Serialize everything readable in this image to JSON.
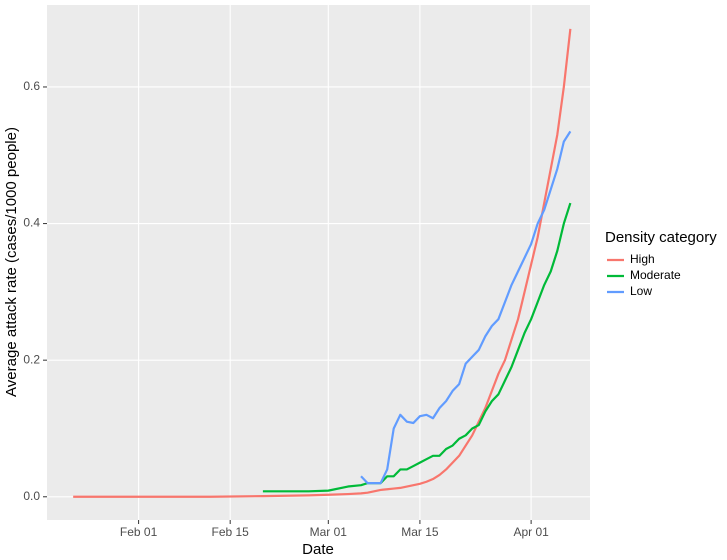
{
  "chart_data": {
    "type": "line",
    "x_label": "Date",
    "y_label": "Average attack rate (cases/1000 people)",
    "legend_title": "Density category",
    "legend_position": "right",
    "grid": true,
    "x": [
      "01-22",
      "01-29",
      "02-05",
      "02-12",
      "02-20",
      "02-27",
      "03-01",
      "03-04",
      "03-06",
      "03-07",
      "03-08",
      "03-09",
      "03-10",
      "03-11",
      "03-12",
      "03-13",
      "03-14",
      "03-15",
      "03-16",
      "03-17",
      "03-18",
      "03-19",
      "03-20",
      "03-21",
      "03-22",
      "03-23",
      "03-24",
      "03-25",
      "03-26",
      "03-27",
      "03-28",
      "03-29",
      "03-30",
      "03-31",
      "04-01",
      "04-02",
      "04-03",
      "04-04",
      "04-05",
      "04-06",
      "04-07"
    ],
    "xlim": [
      "01-18",
      "04-10"
    ],
    "xticks": [
      {
        "value": "02-01",
        "label": "Feb 01"
      },
      {
        "value": "02-15",
        "label": "Feb 15"
      },
      {
        "value": "03-01",
        "label": "Mar 01"
      },
      {
        "value": "03-15",
        "label": "Mar 15"
      },
      {
        "value": "04-01",
        "label": "Apr 01"
      }
    ],
    "ylim": [
      -0.034,
      0.72
    ],
    "yticks": [
      {
        "value": 0,
        "label": "0.0"
      },
      0.2,
      0.4,
      0.6
    ],
    "series": [
      {
        "name": "High",
        "color": "#F8766D",
        "values": [
          0,
          0,
          0,
          0,
          0.001,
          0.002,
          0.003,
          0.004,
          0.005,
          0.006,
          0.008,
          0.01,
          0.011,
          0.012,
          0.013,
          0.015,
          0.017,
          0.019,
          0.022,
          0.026,
          0.032,
          0.04,
          0.05,
          0.06,
          0.075,
          0.09,
          0.11,
          0.13,
          0.155,
          0.18,
          0.2,
          0.23,
          0.26,
          0.3,
          0.34,
          0.38,
          0.43,
          0.48,
          0.53,
          0.6,
          0.685
        ]
      },
      {
        "name": "Moderate",
        "color": "#00BA38",
        "values": [
          null,
          null,
          null,
          null,
          0.008,
          0.008,
          0.009,
          0.015,
          0.017,
          0.02,
          0.02,
          0.02,
          0.03,
          0.03,
          0.04,
          0.04,
          0.045,
          0.05,
          0.055,
          0.06,
          0.06,
          0.07,
          0.075,
          0.085,
          0.09,
          0.1,
          0.105,
          0.125,
          0.14,
          0.15,
          0.17,
          0.19,
          0.215,
          0.24,
          0.26,
          0.285,
          0.31,
          0.33,
          0.36,
          0.4,
          0.43
        ]
      },
      {
        "name": "Low",
        "color": "#619CFF",
        "values": [
          null,
          null,
          null,
          null,
          null,
          null,
          null,
          null,
          0.03,
          0.02,
          0.02,
          0.02,
          0.04,
          0.1,
          0.12,
          0.11,
          0.108,
          0.118,
          0.12,
          0.115,
          0.13,
          0.14,
          0.155,
          0.165,
          0.195,
          0.205,
          0.215,
          0.235,
          0.25,
          0.26,
          0.285,
          0.31,
          0.33,
          0.35,
          0.37,
          0.4,
          0.42,
          0.45,
          0.48,
          0.52,
          0.535
        ]
      }
    ]
  }
}
